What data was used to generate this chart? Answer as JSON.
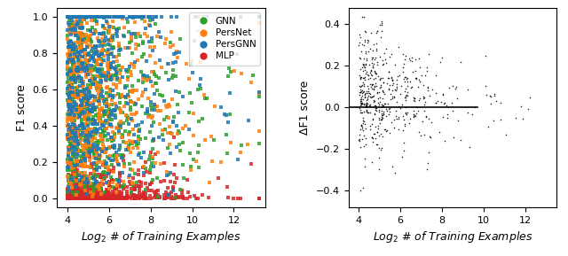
{
  "left_plot": {
    "xlabel": "$Log_2$ # of Training Examples",
    "ylabel": "F1 score",
    "xlim": [
      3.5,
      13.5
    ],
    "ylim": [
      -0.05,
      1.05
    ],
    "xticks": [
      4,
      6,
      8,
      10,
      12
    ],
    "yticks": [
      0.0,
      0.2,
      0.4,
      0.6,
      0.8,
      1.0
    ],
    "series": [
      {
        "label": "GNN",
        "color": "#2ca02c"
      },
      {
        "label": "PersNet",
        "color": "#ff7f0e"
      },
      {
        "label": "PersGNN",
        "color": "#1f77b4"
      },
      {
        "label": "MLP",
        "color": "#d62728"
      }
    ]
  },
  "right_plot": {
    "xlabel": "$Log_2$ # of Training Examples",
    "ylabel": "ΔF1 score",
    "xlim": [
      3.5,
      13.5
    ],
    "ylim": [
      -0.48,
      0.48
    ],
    "xticks": [
      4,
      6,
      8,
      10,
      12
    ],
    "yticks": [
      -0.4,
      -0.2,
      0.0,
      0.2,
      0.4
    ]
  },
  "seed": 42
}
